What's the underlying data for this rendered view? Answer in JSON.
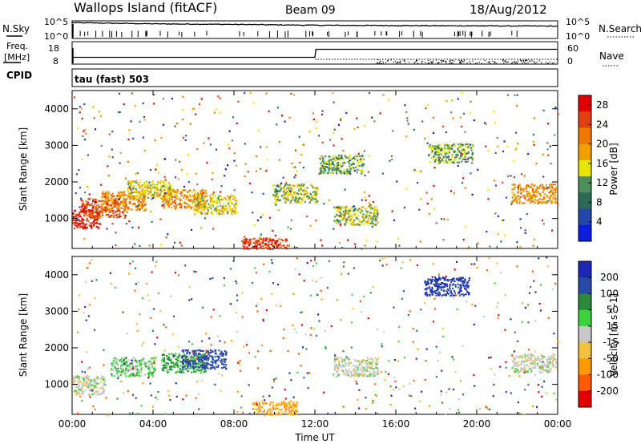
{
  "header": {
    "station": "Wallops Island (fitACF)",
    "beam": "Beam 09",
    "date": "18/Aug/2012"
  },
  "noise_panel": {
    "left_label": "N.Sky",
    "right_label": "N.Search",
    "ticks_left": [
      "10^5",
      "10^0"
    ],
    "ticks_right": [
      "10^5",
      "10^0"
    ]
  },
  "freq_panel": {
    "left_label_1": "Freq.",
    "left_label_2": "[MHz]",
    "right_label": "Nave",
    "ticks_left": [
      "18",
      "8"
    ],
    "ticks_right": [
      "60",
      "0"
    ],
    "cpid_label": "CPID",
    "cpid_text": "tau (fast) 503"
  },
  "colors": {
    "power_scale": [
      "#0a1edc",
      "#2346a8",
      "#2c6a58",
      "#4f8f5c",
      "#e6e600",
      "#f0a000",
      "#ee7800",
      "#e04010",
      "#e00000"
    ],
    "velocity_scale": [
      "#e00000",
      "#ff5a00",
      "#ff9a00",
      "#f0c040",
      "#c8c8c8",
      "#3cd23c",
      "#2a8a3a",
      "#2a4aa8",
      "#1a28b4"
    ],
    "ground_scatter": "#c8c8c8"
  },
  "chart_data": [
    {
      "type": "line",
      "title": "N.Sky / N.Search",
      "x": [
        "00:00",
        "04:00",
        "08:00",
        "12:00",
        "16:00",
        "20:00",
        "24:00"
      ],
      "series": [
        {
          "name": "N.Sky",
          "values": [
            5.2,
            4.8,
            4.6,
            4.3,
            4.2,
            4.1,
            4.0
          ]
        }
      ],
      "ylim": [
        0,
        5
      ],
      "scale": "log"
    },
    {
      "type": "line",
      "title": "Freq. / Nave",
      "x": [
        "00:00",
        "04:00",
        "08:00",
        "12:00",
        "12:05",
        "16:00",
        "20:00",
        "24:00"
      ],
      "series": [
        {
          "name": "Freq.",
          "values": [
            11,
            11,
            11,
            11,
            15,
            15,
            15,
            15
          ]
        }
      ],
      "ylim": [
        8,
        18
      ]
    },
    {
      "type": "heatmap",
      "title": "Power",
      "xlabel": "Time UT",
      "ylabel": "Slant Range [km]",
      "xticks": [
        "00:00",
        "04:00",
        "08:00",
        "12:00",
        "16:00",
        "20:00",
        "00:00"
      ],
      "yticks": [
        "1000",
        "2000",
        "3000",
        "4000"
      ],
      "xlim": [
        0,
        24
      ],
      "ylim": [
        180,
        4500
      ],
      "colorbar_label": "Power [dB]",
      "colorbar_ticks": [
        "4",
        "8",
        "12",
        "16",
        "20",
        "24",
        "28"
      ],
      "colorbar_range": [
        0,
        30
      ],
      "features": [
        {
          "t": 0.3,
          "r": 1000,
          "val": 27
        },
        {
          "t": 1.5,
          "r": 1300,
          "val": 24
        },
        {
          "t": 2.5,
          "r": 1500,
          "val": 20
        },
        {
          "t": 3.8,
          "r": 1800,
          "val": 16
        },
        {
          "t": 5.5,
          "r": 1550,
          "val": 20
        },
        {
          "t": 7.0,
          "r": 1400,
          "val": 16
        },
        {
          "t": 9.5,
          "r": 220,
          "val": 26
        },
        {
          "t": 11.0,
          "r": 1700,
          "val": 14
        },
        {
          "t": 14.0,
          "r": 1100,
          "val": 14
        },
        {
          "t": 13.3,
          "r": 2500,
          "val": 12
        },
        {
          "t": 18.7,
          "r": 2800,
          "val": 12
        },
        {
          "t": 22.8,
          "r": 1700,
          "val": 20
        }
      ]
    },
    {
      "type": "heatmap",
      "title": "Velocity",
      "xlabel": "Time UT",
      "ylabel": "Slant Range [km]",
      "xticks": [
        "00:00",
        "04:00",
        "08:00",
        "12:00",
        "16:00",
        "20:00",
        "00:00"
      ],
      "yticks": [
        "1000",
        "2000",
        "3000",
        "4000"
      ],
      "xlim": [
        0,
        24
      ],
      "ylim": [
        180,
        4500
      ],
      "colorbar_label": "Velocity [m s^-1]",
      "colorbar_ticks": [
        "200",
        "100",
        "50",
        "15",
        "-15",
        "-50",
        "-100",
        "-200"
      ],
      "colorbar_range": [
        -250,
        250
      ],
      "features": [
        {
          "t": 0.5,
          "r": 1000,
          "val": 0
        },
        {
          "t": 3.0,
          "r": 1500,
          "val": 30
        },
        {
          "t": 5.5,
          "r": 1600,
          "val": 60
        },
        {
          "t": 6.5,
          "r": 1700,
          "val": 150
        },
        {
          "t": 10.0,
          "r": 300,
          "val": -60
        },
        {
          "t": 14.0,
          "r": 1500,
          "val": 0
        },
        {
          "t": 18.5,
          "r": 3700,
          "val": 200
        },
        {
          "t": 22.8,
          "r": 1600,
          "val": 0
        }
      ]
    }
  ]
}
